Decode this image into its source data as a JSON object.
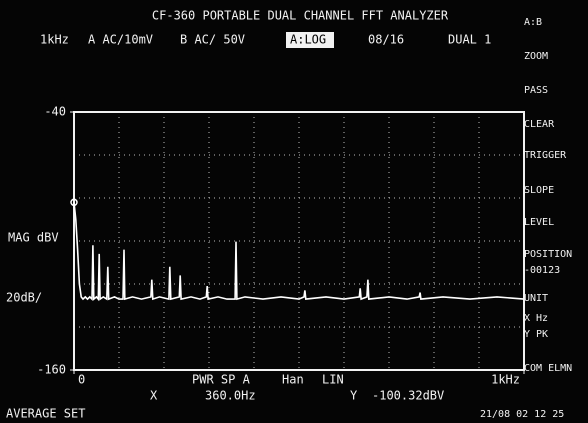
{
  "header": {
    "title": "CF-360 PORTABLE DUAL CHANNEL FFT ANALYZER",
    "range": "1kHz",
    "channel_a": "A AC/10mV",
    "channel_b": "B AC/ 50V",
    "mode": "A:LOG",
    "average": "08/16",
    "display": "DUAL 1"
  },
  "menu": [
    "A:B",
    "ZOOM",
    "PASS",
    "CLEAR",
    "TRIGGER",
    "SLOPE",
    "LEVEL",
    "POSITION",
    "-00123",
    "UNIT",
    "X Hz",
    "Y PK",
    "COM ELMN"
  ],
  "left": {
    "axis_title": "MAG dBV",
    "scale": "20dB/"
  },
  "status": {
    "function": "PWR SP A",
    "window": "Han",
    "scale": "LIN",
    "x_label": "X",
    "x_value": "360.0Hz",
    "y_label": "Y",
    "y_value": "-100.32dBV",
    "footer": "AVERAGE SET",
    "timestamp": "21/08 02 12 25"
  },
  "chart_data": {
    "type": "line",
    "color": "#ffffff",
    "x": [
      0,
      4,
      8,
      12,
      16,
      20,
      25,
      30,
      35,
      40,
      42,
      44,
      50,
      54,
      56,
      58,
      65,
      73,
      75,
      77,
      90,
      100,
      109,
      111,
      113,
      130,
      150,
      171,
      173,
      175,
      190,
      211,
      213,
      215,
      234,
      236,
      238,
      260,
      280,
      294,
      296,
      298,
      320,
      340,
      358,
      360,
      362,
      380,
      420,
      460,
      500,
      511,
      513,
      515,
      560,
      600,
      634,
      636,
      638,
      651,
      653,
      655,
      700,
      740,
      767,
      769,
      771,
      820,
      880,
      940,
      1000
    ],
    "values": [
      -82,
      -90,
      -104,
      -120,
      -126,
      -127,
      -126,
      -127,
      -126,
      -127,
      -102,
      -127,
      -126,
      -127,
      -106,
      -127,
      -126,
      -127,
      -112,
      -127,
      -126,
      -127,
      -127,
      -104,
      -127,
      -126,
      -127,
      -126,
      -118,
      -127,
      -126,
      -127,
      -112,
      -127,
      -126,
      -116,
      -127,
      -126,
      -127,
      -126,
      -121,
      -127,
      -126,
      -127,
      -127,
      -100.32,
      -127,
      -126,
      -127,
      -126,
      -127,
      -126,
      -123,
      -127,
      -126,
      -127,
      -126,
      -122,
      -127,
      -126,
      -118,
      -127,
      -126,
      -127,
      -126,
      -124,
      -127,
      -126,
      -127,
      -126,
      -127
    ],
    "xlim": [
      0,
      1000
    ],
    "xticks": [
      0,
      {
        "value": 1000,
        "label": "1kHz"
      }
    ],
    "ylim": [
      -160,
      -40
    ],
    "yticks": [
      -40,
      -160
    ],
    "grid": true
  }
}
